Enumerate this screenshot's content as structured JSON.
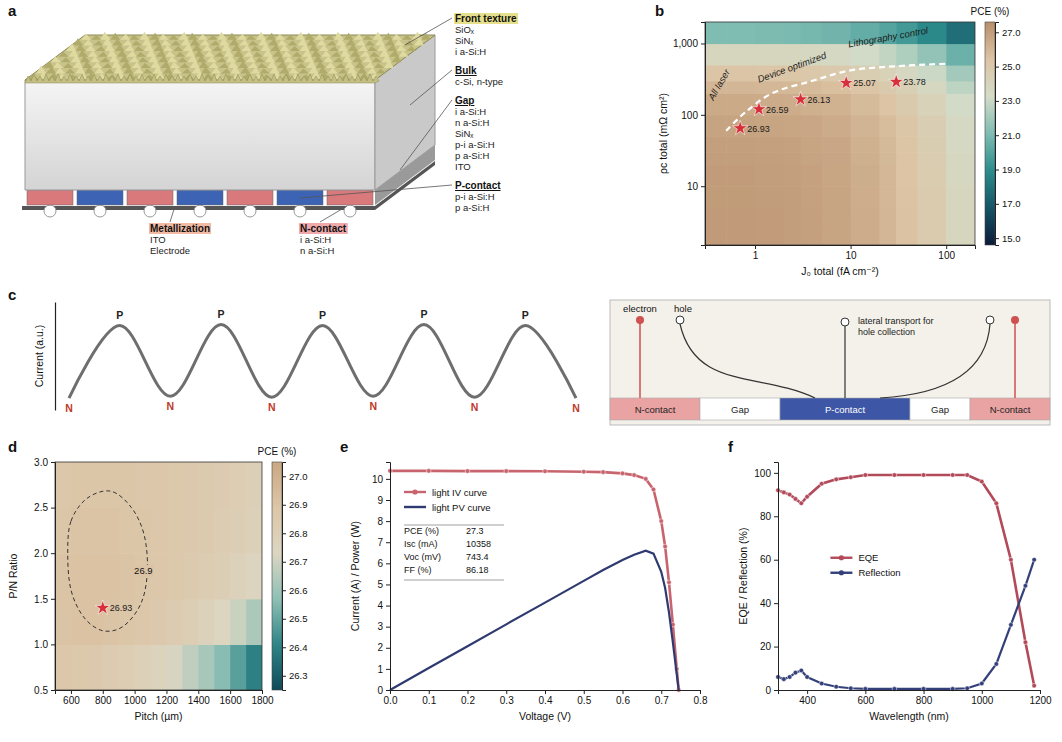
{
  "chart_data": [
    {
      "panel": "b",
      "type": "heatmap",
      "log": true,
      "x_label": "J₀ total (fA cm⁻²)",
      "y_label": "ρc total (mΩ cm²)",
      "xlim": [
        0.3,
        200
      ],
      "ylim": [
        1.5,
        2000
      ],
      "xticks": [
        1,
        10,
        100
      ],
      "yticks": [
        10,
        100,
        {
          "value": 1000,
          "label": "1,000"
        }
      ],
      "x_edges": [
        0.3,
        0.5,
        1,
        2,
        3,
        5,
        10,
        20,
        30,
        50,
        100,
        200
      ],
      "y_edges": [
        1.5,
        3,
        5,
        10,
        20,
        30,
        50,
        100,
        200,
        300,
        500,
        1000,
        2000
      ],
      "cells": [
        [
          27.1,
          27.1,
          27.05,
          27.0,
          26.9,
          26.75,
          26.4,
          26.0,
          25.5,
          24.8,
          23.8
        ],
        [
          27.1,
          27.1,
          27.05,
          27.0,
          26.9,
          26.75,
          26.4,
          26.0,
          25.5,
          24.8,
          23.8
        ],
        [
          27.08,
          27.08,
          27.03,
          26.98,
          26.88,
          26.73,
          26.38,
          25.98,
          25.48,
          24.78,
          23.78
        ],
        [
          27.05,
          27.05,
          27.0,
          26.95,
          26.85,
          26.7,
          26.35,
          25.95,
          25.45,
          24.75,
          23.75
        ],
        [
          27.0,
          27.0,
          26.95,
          26.9,
          26.8,
          26.65,
          26.3,
          25.9,
          25.4,
          24.7,
          23.7
        ],
        [
          26.95,
          26.95,
          26.9,
          26.85,
          26.75,
          26.6,
          26.25,
          25.85,
          25.35,
          24.65,
          23.65
        ],
        [
          26.8,
          26.8,
          26.75,
          26.7,
          26.6,
          26.45,
          26.1,
          25.7,
          25.2,
          24.5,
          23.5
        ],
        [
          26.5,
          26.5,
          26.45,
          26.4,
          26.3,
          26.15,
          25.8,
          25.4,
          24.9,
          24.2,
          23.2
        ],
        [
          26.0,
          26.0,
          25.95,
          25.9,
          25.8,
          25.65,
          25.3,
          24.9,
          24.4,
          23.7,
          22.7
        ],
        [
          25.3,
          25.3,
          25.25,
          25.2,
          25.1,
          24.95,
          24.6,
          24.2,
          23.7,
          23.0,
          22.0
        ],
        [
          23.9,
          23.9,
          23.85,
          23.8,
          23.7,
          23.55,
          23.2,
          22.8,
          22.3,
          21.6,
          20.6
        ],
        [
          21.1,
          21.1,
          21.05,
          21.0,
          20.9,
          20.75,
          20.4,
          20.0,
          19.5,
          18.8,
          17.8
        ]
      ],
      "colorbar": {
        "title": "PCE (%)",
        "range": [
          14.6,
          27.6
        ],
        "ticks": [
          {
            "value": 15,
            "label": "15.0"
          },
          {
            "value": 17,
            "label": "17.0"
          },
          {
            "value": 19,
            "label": "19.0"
          },
          {
            "value": 21,
            "label": "21.0"
          },
          {
            "value": 23,
            "label": "23.0"
          },
          {
            "value": 25,
            "label": "25.0"
          },
          {
            "value": 27,
            "label": "27.0"
          }
        ]
      },
      "points": {
        "x": [
          0.7,
          1.1,
          3,
          9,
          30
        ],
        "y": [
          65,
          120,
          165,
          280,
          290
        ],
        "values": [
          26.93,
          26.59,
          26.13,
          25.07,
          23.78
        ],
        "marker": "star",
        "color": "#d62f3a"
      },
      "data_labels": true,
      "trajectory": {
        "x": [
          0.5,
          0.8,
          1.5,
          4,
          10,
          30,
          100
        ],
        "y": [
          60,
          110,
          200,
          300,
          420,
          480,
          520
        ]
      },
      "annotations": [
        {
          "text": "All laser",
          "x": 0.45,
          "y": 250
        },
        {
          "text": "Device optimized",
          "x": 2.5,
          "y": 420
        },
        {
          "text": "Lithography control",
          "x": 25,
          "y": 1100
        }
      ]
    },
    {
      "panel": "c",
      "type": "line",
      "y_label": "Current (a.u.)",
      "categories": [
        "N",
        "P",
        "N",
        "P",
        "N",
        "P",
        "N",
        "P",
        "N",
        "P",
        "N"
      ],
      "values": [
        0.12,
        0.86,
        0.14,
        0.87,
        0.13,
        0.86,
        0.14,
        0.87,
        0.13,
        0.86,
        0.12
      ],
      "ylim": [
        0,
        1.1
      ],
      "tick_labels": false,
      "color": "#6e6e6e"
    },
    {
      "panel": "d",
      "type": "heatmap",
      "x_label": "Pitch (µm)",
      "y_label": "P/N Ratio",
      "xlim": [
        500,
        1800
      ],
      "ylim": [
        0.5,
        3.0
      ],
      "xticks": [
        600,
        800,
        1000,
        1200,
        1400,
        1600,
        1800
      ],
      "yticks": [
        0.5,
        {
          "value": 1,
          "label": "1.0"
        },
        1.5,
        {
          "value": 2,
          "label": "2.0"
        },
        2.5,
        {
          "value": 3,
          "label": "3.0"
        }
      ],
      "x_edges": [
        500,
        600,
        700,
        800,
        900,
        1000,
        1100,
        1200,
        1300,
        1400,
        1500,
        1600,
        1700,
        1800
      ],
      "y_edges": [
        0.5,
        1.0,
        1.5,
        2.0,
        2.5,
        3.0
      ],
      "cells": [
        [
          26.88,
          26.87,
          26.86,
          26.84,
          26.82,
          26.79,
          26.76,
          26.72,
          26.67,
          26.62,
          26.56,
          26.48,
          26.4
        ],
        [
          26.9,
          26.91,
          26.91,
          26.9,
          26.89,
          26.88,
          26.86,
          26.84,
          26.81,
          26.78,
          26.74,
          26.69,
          26.63
        ],
        [
          26.9,
          26.91,
          26.91,
          26.91,
          26.9,
          26.89,
          26.88,
          26.87,
          26.85,
          26.83,
          26.81,
          26.78,
          26.75
        ],
        [
          26.89,
          26.9,
          26.9,
          26.9,
          26.89,
          26.89,
          26.88,
          26.87,
          26.86,
          26.85,
          26.83,
          26.81,
          26.79
        ],
        [
          26.88,
          26.89,
          26.89,
          26.89,
          26.89,
          26.88,
          26.88,
          26.87,
          26.86,
          26.85,
          26.84,
          26.82,
          26.8
        ]
      ],
      "colorbar": {
        "title": "PCE (%)",
        "range": [
          26.25,
          27.05
        ],
        "ticks": [
          26.3,
          26.4,
          26.5,
          26.6,
          26.7,
          26.8,
          26.9,
          {
            "value": 27,
            "label": "27.0"
          }
        ]
      },
      "points": {
        "x": [
          800
        ],
        "y": [
          1.4
        ],
        "values": [
          26.93
        ],
        "marker": "star",
        "color": "#d62f3a"
      },
      "data_labels": true,
      "contour": {
        "value": 26.9,
        "x": [
          700,
          600,
          580,
          600,
          680,
          800,
          930,
          1040,
          1080,
          1060,
          980,
          850
        ],
        "y": [
          2.6,
          2.35,
          2.0,
          1.6,
          1.3,
          1.15,
          1.2,
          1.45,
          1.8,
          2.2,
          2.5,
          2.68
        ]
      }
    },
    {
      "panel": "e",
      "type": "line",
      "x_label": "Voltage (V)",
      "y_label": "Current (A) / Power (W)",
      "xlim": [
        0,
        0.8
      ],
      "ylim": [
        0,
        10.8
      ],
      "xticks": [
        {
          "value": 0,
          "label": "0.0"
        },
        0.1,
        0.2,
        0.3,
        0.4,
        0.5,
        0.6,
        0.7,
        0.8
      ],
      "yticks": [
        0,
        1,
        2,
        3,
        4,
        5,
        6,
        7,
        8,
        9,
        10
      ],
      "x": [
        0,
        0.1,
        0.2,
        0.3,
        0.4,
        0.5,
        0.55,
        0.6,
        0.63,
        0.66,
        0.68,
        0.7,
        0.71,
        0.72,
        0.73,
        0.74,
        0.745
      ],
      "series": [
        {
          "name": "light IV curve",
          "color": "#c8646e",
          "marker": "circle",
          "values": [
            10.38,
            10.38,
            10.37,
            10.37,
            10.36,
            10.34,
            10.32,
            10.26,
            10.18,
            10.0,
            9.5,
            8.0,
            6.8,
            5.1,
            3.1,
            1.0,
            0
          ]
        },
        {
          "name": "light PV curve",
          "color": "#2f3a70",
          "values": [
            0,
            1.04,
            2.07,
            3.11,
            4.14,
            5.17,
            5.68,
            6.16,
            6.41,
            6.6,
            6.46,
            5.6,
            4.83,
            3.67,
            2.26,
            0.74,
            0
          ]
        }
      ],
      "legend": "upper left",
      "table": [
        [
          "PCE (%)",
          "27.3"
        ],
        [
          "Isc (mA)",
          "10358"
        ],
        [
          "Voc (mV)",
          "743.4"
        ],
        [
          "FF (%)",
          "86.18"
        ]
      ]
    },
    {
      "panel": "f",
      "type": "line",
      "x_label": "Wavelength (nm)",
      "y_label": "EQE / Reflection (%)",
      "xlim": [
        300,
        1200
      ],
      "ylim": [
        0,
        105
      ],
      "xticks": [
        400,
        600,
        800,
        1000,
        1200
      ],
      "yticks": [
        0,
        20,
        40,
        60,
        80,
        100
      ],
      "x": [
        300,
        320,
        340,
        360,
        380,
        400,
        450,
        500,
        550,
        600,
        700,
        800,
        900,
        950,
        1000,
        1050,
        1100,
        1150,
        1180
      ],
      "series": [
        {
          "name": "EQE",
          "color": "#b24a5a",
          "marker": "circle",
          "values": [
            92,
            91,
            90,
            88,
            86,
            89,
            95,
            97,
            98,
            99,
            99,
            99,
            99,
            99,
            96,
            86,
            60,
            22,
            2
          ]
        },
        {
          "name": "Reflection",
          "color": "#34407a",
          "marker": "circle",
          "values": [
            6,
            5,
            6,
            8,
            9,
            6,
            3,
            1.5,
            0.8,
            0.5,
            0.5,
            0.5,
            0.5,
            0.8,
            3,
            12,
            30,
            48,
            60
          ]
        }
      ],
      "legend": "left"
    }
  ],
  "diagrams": {
    "a": {
      "panel": "a",
      "groups": [
        {
          "title": "Front texture",
          "items": [
            "SiOₓ",
            "SiNₓ",
            "i a-Si:H"
          ]
        },
        {
          "title": "Bulk",
          "items": [
            "c-Si, n-type"
          ]
        },
        {
          "title": "Gap",
          "items": [
            "i a-Si:H",
            "n a-Si:H",
            "SiNₓ",
            "p-i a-Si:H",
            "p a-Si:H",
            "ITO"
          ]
        },
        {
          "title": "P-contact",
          "items": [
            "p-i a-Si:H",
            "p a-Si:H"
          ]
        },
        {
          "title": "Metallization",
          "items": [
            "ITO",
            "Electrode"
          ]
        },
        {
          "title": "N-contact",
          "items": [
            "i a-Si:H",
            "n a-Si:H"
          ]
        }
      ]
    },
    "c": {
      "electron": "electron",
      "hole": "hole",
      "note": "lateral transport for hole collection",
      "contacts": [
        "N-contact",
        "Gap",
        "P-contact",
        "Gap",
        "N-contact"
      ]
    }
  }
}
